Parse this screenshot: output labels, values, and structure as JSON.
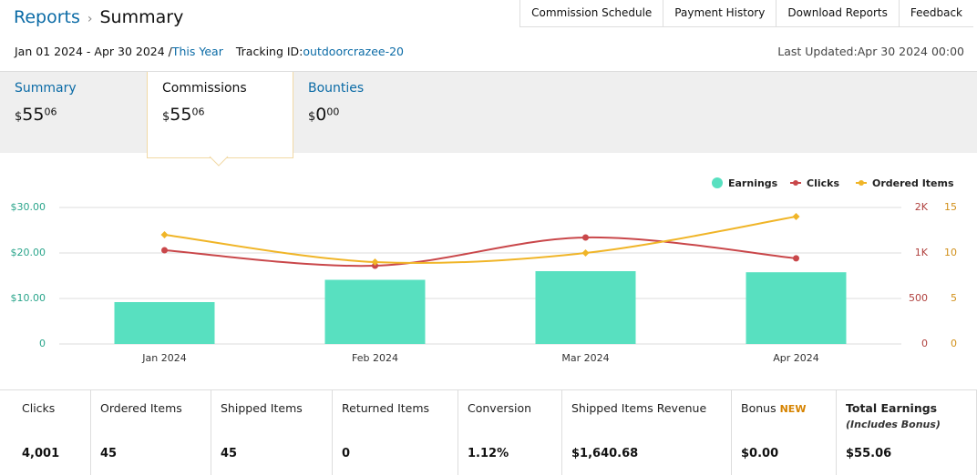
{
  "header": {
    "breadcrumb": [
      "Reports",
      "Summary"
    ],
    "tabs": [
      "Commission Schedule",
      "Payment History",
      "Download Reports",
      "Feedback"
    ]
  },
  "filters": {
    "date_range": "Jan 01 2024 - Apr 30 2024 /",
    "period": "This Year",
    "tracking_label": "Tracking ID:",
    "tracking_id": "outdoorcrazee-20",
    "updated_label": "Last Updated:",
    "updated": "Apr 30 2024 00:00"
  },
  "summary_tabs": [
    {
      "name": "Summary",
      "symbol": "$",
      "whole": "55",
      "fraction": "06"
    },
    {
      "name": "Commissions",
      "symbol": "$",
      "whole": "55",
      "fraction": "06"
    },
    {
      "name": "Bounties",
      "symbol": "$",
      "whole": "0",
      "fraction": "00"
    }
  ],
  "chart_data": {
    "type": "combo",
    "categories": [
      "Jan 2024",
      "Feb 2024",
      "Mar 2024",
      "Apr 2024"
    ],
    "series": [
      {
        "name": "Earnings",
        "type": "bar",
        "color": "#58e0c0",
        "axis": "y",
        "values": [
          9.2,
          14.1,
          16.0,
          15.76
        ]
      },
      {
        "name": "Clicks",
        "type": "line",
        "marker": "circle",
        "color": "#c9474a",
        "axis": "y2",
        "values": [
          1030,
          860,
          1170,
          941
        ]
      },
      {
        "name": "Ordered Items",
        "type": "line",
        "marker": "diamond",
        "color": "#f0b528",
        "axis": "y3",
        "values": [
          12,
          9,
          10,
          14
        ]
      }
    ],
    "ylim": [
      0,
      30
    ],
    "yticks": [
      {
        "value": 0,
        "label": "0"
      },
      {
        "value": 10,
        "label": "$10.00"
      },
      {
        "value": 20,
        "label": "$20.00"
      },
      {
        "value": 30,
        "label": "$30.00"
      }
    ],
    "y2lim": [
      0,
      1500
    ],
    "y2ticks": [
      0,
      500,
      {
        "value": 1000,
        "label": "1K"
      },
      {
        "value": 1500,
        "label": "2K"
      }
    ],
    "y3lim": [
      0,
      15
    ],
    "y3ticks": [
      0,
      5,
      10,
      15
    ],
    "grid": true,
    "legend": "top-right"
  },
  "stats": [
    {
      "label": "Clicks",
      "value": "4,001"
    },
    {
      "label": "Ordered Items",
      "value": "45"
    },
    {
      "label": "Shipped Items",
      "value": "45"
    },
    {
      "label": "Returned Items",
      "value": "0"
    },
    {
      "label": "Conversion",
      "value": "1.12%"
    },
    {
      "label": "Shipped Items Revenue",
      "value": "$1,640.68"
    },
    {
      "label": "Bonus",
      "badge": "NEW",
      "value": "$0.00"
    },
    {
      "label": "Total Earnings",
      "note": "(Includes Bonus)",
      "value": "$55.06"
    }
  ]
}
